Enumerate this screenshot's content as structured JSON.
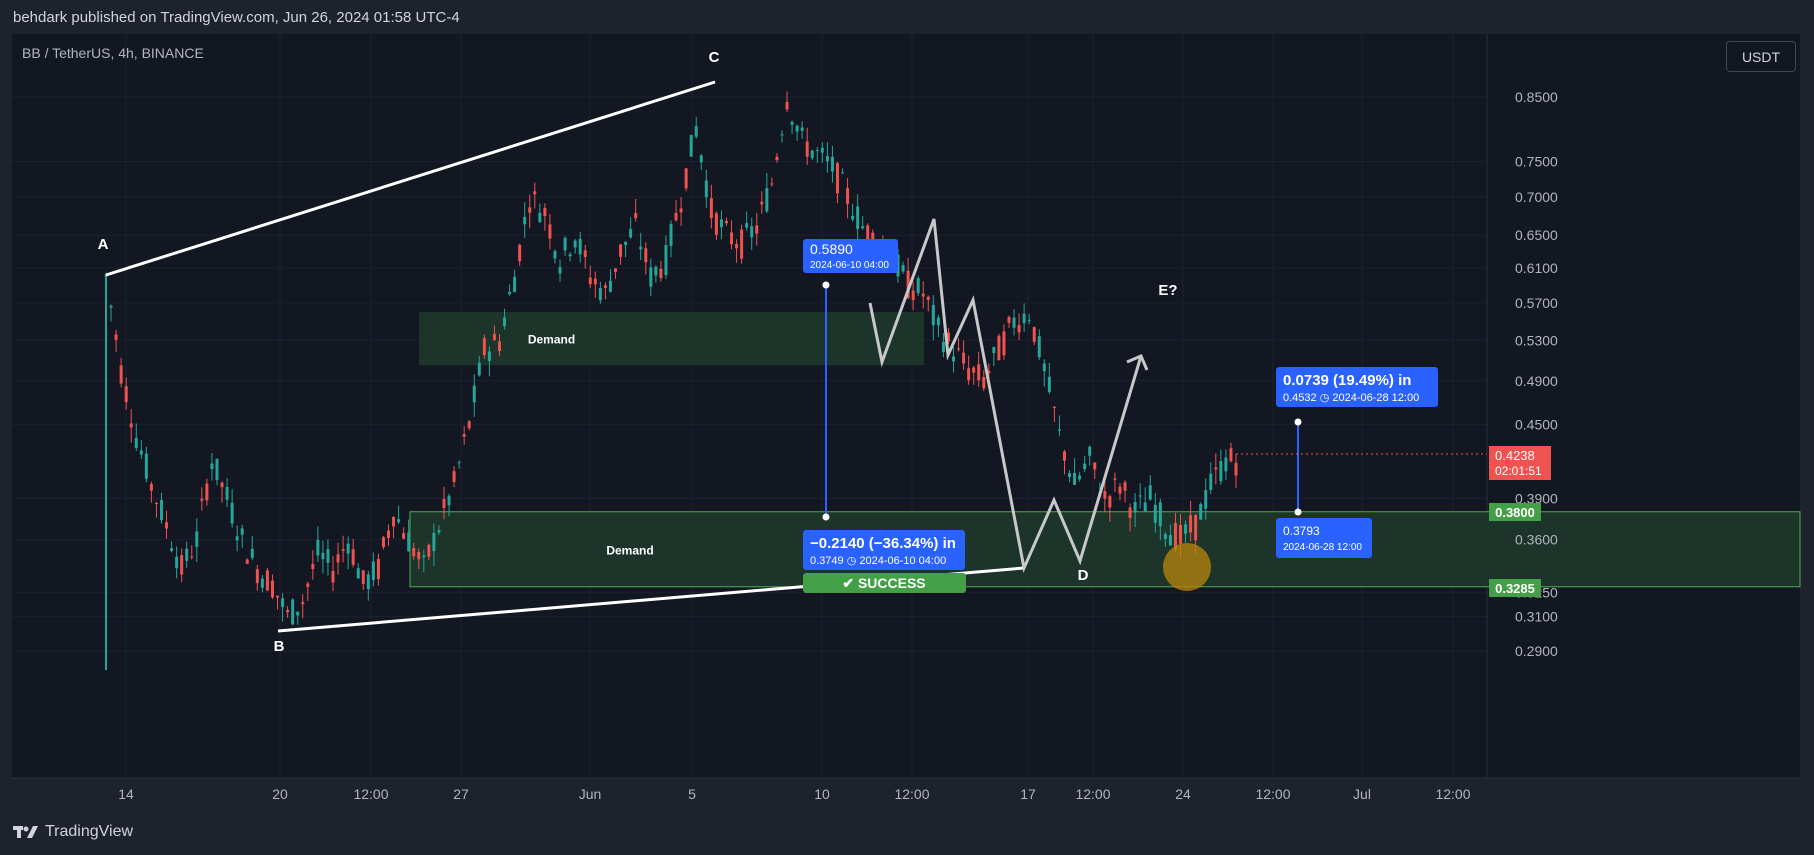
{
  "header": {
    "published": "behdark published on TradingView.com, Jun 26, 2024 01:58 UTC-4"
  },
  "symbol_line": "BB / TetherUS, 4h, BINANCE",
  "currency_button": "USDT",
  "footer": {
    "brand": "TradingView"
  },
  "colors": {
    "bg": "#131722",
    "up": "#26a69a",
    "down": "#ef5350",
    "demand": "#1e3a2a",
    "label_blue": "#2962ff",
    "success": "#43a047"
  },
  "chart_data": {
    "type": "candlestick",
    "y_ticks": [
      "0.8500",
      "0.7500",
      "0.7000",
      "0.6500",
      "0.6100",
      "0.5700",
      "0.5300",
      "0.4900",
      "0.4500",
      "0.3900",
      "0.3600",
      "0.3250",
      "0.3100",
      "0.2900"
    ],
    "x_ticks": [
      "14",
      "20",
      "12:00",
      "27",
      "Jun",
      "5",
      "10",
      "12:00",
      "17",
      "12:00",
      "24",
      "12:00",
      "Jul",
      "12:00"
    ],
    "last_price": "0.4238",
    "countdown": "02:01:51",
    "price_labels": [
      "0.3800",
      "0.3285"
    ],
    "wave_labels": [
      "A",
      "B",
      "C",
      "D",
      "E?"
    ],
    "zones": [
      {
        "label": "Demand",
        "from": 0.505,
        "to": 0.56
      },
      {
        "label": "Demand",
        "from": 0.3285,
        "to": 0.38
      }
    ],
    "measure_down": {
      "top_price": "0.5890",
      "top_time": "2024-06-10 04:00",
      "change": "−0.2140 (−36.34%) in",
      "bottom_price": "0.3749",
      "bottom_time": "2024-06-10  04:00"
    },
    "measure_up": {
      "change": "0.0739 (19.49%) in",
      "top_price": "0.4532",
      "top_time": "2024-06-28  12:00",
      "bottom_price": "0.3793",
      "bottom_time": "2024-06-28 12:00"
    },
    "success_label": "SUCCESS",
    "candles_close_path": [
      0.6,
      0.5,
      0.44,
      0.4,
      0.37,
      0.34,
      0.36,
      0.42,
      0.39,
      0.36,
      0.34,
      0.33,
      0.31,
      0.32,
      0.35,
      0.34,
      0.36,
      0.33,
      0.34,
      0.38,
      0.36,
      0.34,
      0.37,
      0.4,
      0.45,
      0.52,
      0.53,
      0.6,
      0.7,
      0.68,
      0.62,
      0.65,
      0.6,
      0.58,
      0.63,
      0.66,
      0.6,
      0.62,
      0.7,
      0.8,
      0.68,
      0.65,
      0.64,
      0.66,
      0.72,
      0.85,
      0.78,
      0.76,
      0.74,
      0.7,
      0.66,
      0.64,
      0.62,
      0.59,
      0.58,
      0.54,
      0.52,
      0.5,
      0.49,
      0.52,
      0.55,
      0.56,
      0.5,
      0.44,
      0.4,
      0.42,
      0.39,
      0.4,
      0.38,
      0.39,
      0.37,
      0.36,
      0.37,
      0.4,
      0.42
    ]
  }
}
